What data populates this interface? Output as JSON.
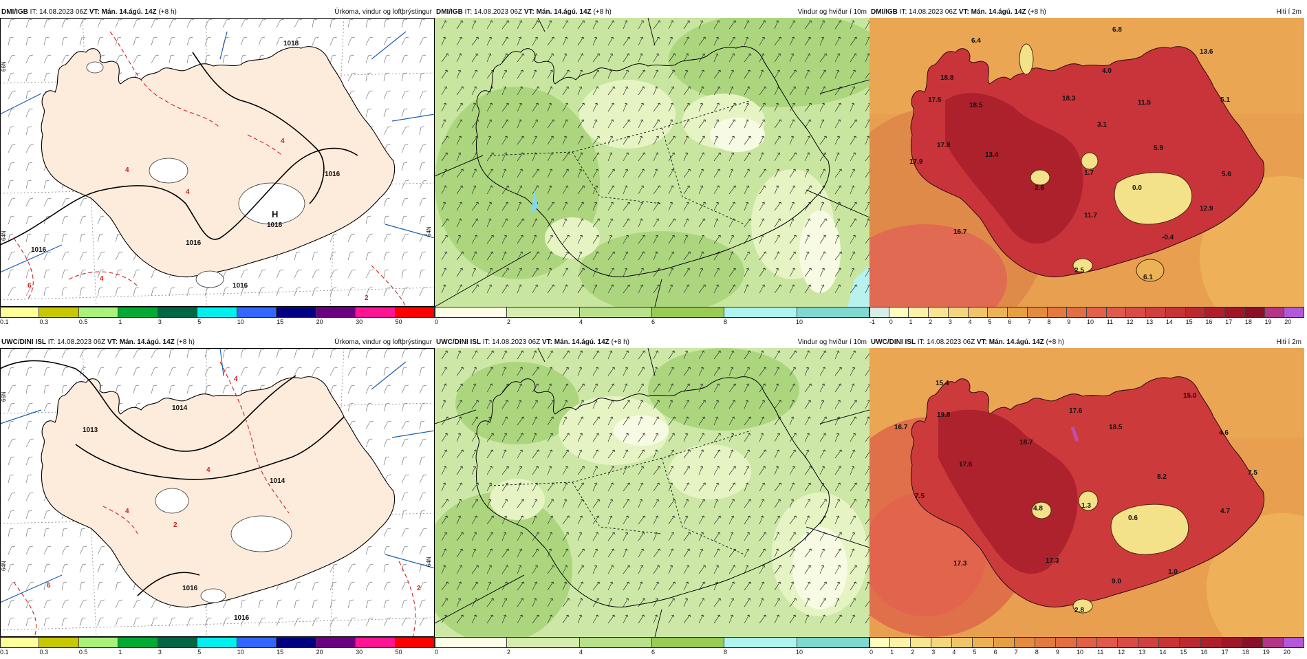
{
  "rows": [
    {
      "model_prefix": "DMI/IGB",
      "panels": [
        {
          "kind": "precip",
          "model": "DMI/IGB",
          "it_label": "IT:",
          "it_value": "14.08.2023 06Z",
          "vt_label": "VT:",
          "vt_value": "Mán. 14.ágú. 14Z",
          "lead": "(+8 h)",
          "title": "Úrkoma, vindur og loftþrýstingur",
          "pressure_labels": [
            "1018",
            "1016",
            "1016",
            "1016",
            "1016"
          ],
          "high_label": "H",
          "high_value": "1018",
          "precip_labels": [
            "4",
            "4",
            "6",
            "4",
            "4",
            "2"
          ],
          "lat_labels": [
            "66N",
            "64N",
            "64N"
          ]
        },
        {
          "kind": "wind",
          "model": "DMI/IGB",
          "it_label": "IT:",
          "it_value": "14.08.2023 06Z",
          "vt_label": "VT:",
          "vt_value": "Mán. 14.ágú. 14Z",
          "lead": "(+8 h)",
          "title": "Vindur og hviður í 10m"
        },
        {
          "kind": "temp",
          "model": "DMI/IGB",
          "it_label": "IT:",
          "it_value": "14.08.2023 06Z",
          "vt_label": "VT:",
          "vt_value": "Mán. 14.ágú. 14Z",
          "lead": "(+8 h)",
          "title": "Hiti í 2m",
          "temp_labels": [
            "6.8",
            "6.4",
            "13.6",
            "18.8",
            "4.0",
            "17.5",
            "18.5",
            "18.3",
            "11.5",
            "5.1",
            "3.1",
            "17.8",
            "5.9",
            "17.9",
            "13.4",
            "1.7",
            "2.8",
            "0.0",
            "5.6",
            "12.9",
            "11.7",
            "16.7",
            "-0.4",
            "2.5",
            "6.1"
          ]
        }
      ]
    },
    {
      "model_prefix": "UWC/DINI ISL",
      "panels": [
        {
          "kind": "precip",
          "model": "UWC/DINI ISL",
          "it_label": "IT:",
          "it_value": "14.08.2023 06Z",
          "vt_label": "VT:",
          "vt_value": "Mán. 14.ágú. 14Z",
          "lead": "(+8 h)",
          "title": "Úrkoma, vindur og loftþrýstingur",
          "pressure_labels": [
            "1013",
            "1014",
            "1014",
            "1016",
            "1016"
          ],
          "high_label": "",
          "high_value": "",
          "precip_labels": [
            "4",
            "6",
            "4",
            "2",
            "2",
            "4"
          ],
          "lat_labels": [
            "66N",
            "64N",
            "64N"
          ]
        },
        {
          "kind": "wind",
          "model": "UWC/DINI ISL",
          "it_label": "IT:",
          "it_value": "14.08.2023 06Z",
          "vt_label": "VT:",
          "vt_value": "Mán. 14.ágú. 14Z",
          "lead": "(+8 h)",
          "title": "Vindur og hviður í 10m"
        },
        {
          "kind": "temp",
          "model": "UWC/DINI ISL",
          "it_label": "IT:",
          "it_value": "14.08.2023 06Z",
          "vt_label": "VT:",
          "vt_value": "Mán. 14.ágú. 14Z",
          "lead": "(+8 h)",
          "title": "Hiti í 2m",
          "temp_labels": [
            "15.4",
            "15.0",
            "19.8",
            "17.6",
            "18.5",
            "16.7",
            "18.7",
            "4.6",
            "17.6",
            "8.2",
            "7.5",
            "7.5",
            "4.8",
            "1.3",
            "0.6",
            "4.7",
            "17.3",
            "17.3",
            "1.0",
            "9.0",
            "2.8"
          ]
        }
      ]
    }
  ],
  "legends": {
    "precip": {
      "ticks": [
        "0.1",
        "0.3",
        "0.5",
        "1",
        "3",
        "5",
        "10",
        "15",
        "20",
        "30",
        "50"
      ],
      "colors": [
        "#ffff99",
        "#c8c800",
        "#a8f27a",
        "#00aa33",
        "#006644",
        "#00f0f0",
        "#3366ff",
        "#000080",
        "#6a0080",
        "#ff1493",
        "#ff0000"
      ]
    },
    "wind": {
      "ticks": [
        "0",
        "2",
        "4",
        "6",
        "8",
        "10"
      ],
      "colors": [
        "#fdfde8",
        "#d6edb0",
        "#b9e08a",
        "#98cc55",
        "#aef5ef",
        "#7fd9d0"
      ]
    },
    "temp_top": {
      "ticks": [
        "-1",
        "0",
        "1",
        "2",
        "3",
        "4",
        "5",
        "6",
        "7",
        "8",
        "9",
        "10",
        "11",
        "12",
        "13",
        "14",
        "15",
        "16",
        "17",
        "18",
        "19",
        "20"
      ],
      "colors": [
        "#d7eee6",
        "#fdfdc0",
        "#fbf1a8",
        "#f8e594",
        "#f4d67e",
        "#f0c56a",
        "#ecb356",
        "#e6a044",
        "#e38b3e",
        "#e27a40",
        "#e26e44",
        "#e06048",
        "#de5a4c",
        "#d84c48",
        "#d04040",
        "#c63436",
        "#bb2a30",
        "#ae1f2c",
        "#9e1628",
        "#8a1028",
        "#b2358a",
        "#b159d8"
      ]
    },
    "temp_bottom": {
      "ticks": [
        "0",
        "1",
        "2",
        "3",
        "4",
        "5",
        "6",
        "7",
        "8",
        "9",
        "10",
        "11",
        "12",
        "13",
        "14",
        "15",
        "16",
        "17",
        "18",
        "19",
        "20"
      ],
      "colors": [
        "#fdfdc0",
        "#fbf1a8",
        "#f8e594",
        "#f4d67e",
        "#f0c56a",
        "#ecb356",
        "#e6a044",
        "#e38b3e",
        "#e27a40",
        "#e26e44",
        "#e06048",
        "#de5a4c",
        "#d84c48",
        "#d04040",
        "#c63436",
        "#bb2a30",
        "#ae1f2c",
        "#9e1628",
        "#8a1028",
        "#b2358a",
        "#b159d8"
      ]
    }
  }
}
